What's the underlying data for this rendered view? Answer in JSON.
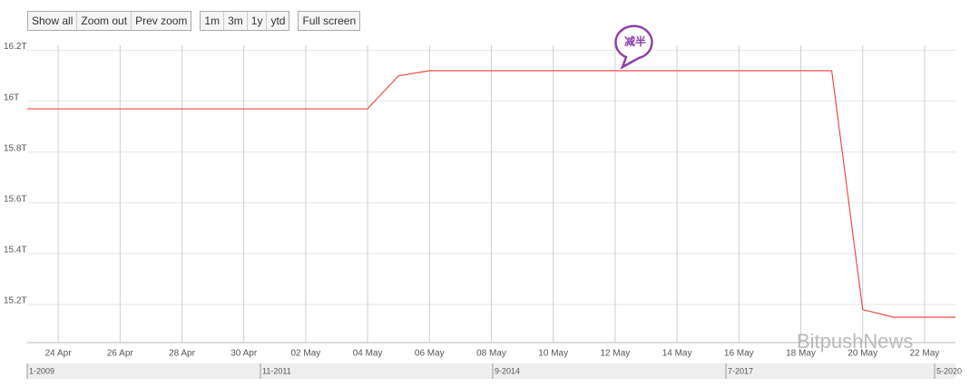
{
  "ui": {
    "button_groups": [
      [
        "Show all",
        "Zoom out",
        "Prev zoom"
      ],
      [
        "1m",
        "3m",
        "1y",
        "ytd"
      ],
      [
        "Full screen"
      ]
    ]
  },
  "chart_data": {
    "type": "line",
    "categories": [
      null,
      "24 Apr",
      null,
      "26 Apr",
      null,
      "28 Apr",
      null,
      "30 Apr",
      null,
      "02 May",
      null,
      "04 May",
      null,
      "06 May",
      null,
      "08 May",
      null,
      "10 May",
      null,
      "12 May",
      null,
      "14 May",
      null,
      "16 May",
      null,
      "18 May",
      null,
      "20 May",
      null,
      "22 May",
      null
    ],
    "series": [
      {
        "color": "#f04a4a",
        "values": [
          15.97,
          15.97,
          15.97,
          15.97,
          15.97,
          15.97,
          15.97,
          15.97,
          15.97,
          15.97,
          15.97,
          15.97,
          16.1,
          16.12,
          16.12,
          16.12,
          16.12,
          16.12,
          16.12,
          16.12,
          16.12,
          16.12,
          16.12,
          16.12,
          16.12,
          16.12,
          16.12,
          15.18,
          15.15,
          15.15,
          15.15
        ]
      }
    ],
    "ylim": [
      15.05,
      16.22
    ],
    "yticks": [
      {
        "value": 15.2,
        "label": "15.2T"
      },
      {
        "value": 15.4,
        "label": "15.4T"
      },
      {
        "value": 15.6,
        "label": "15.6T"
      },
      {
        "value": 15.8,
        "label": "15.8T"
      },
      {
        "value": 16,
        "label": "16T"
      },
      {
        "value": 16.2,
        "label": "16.2T"
      }
    ],
    "grid": true,
    "annotation": "减半"
  },
  "navigator": {
    "labels": [
      "1-2009",
      "11-2011",
      "9-2014",
      "7-2017",
      "5-2020"
    ]
  },
  "watermark": "BitpushNews"
}
